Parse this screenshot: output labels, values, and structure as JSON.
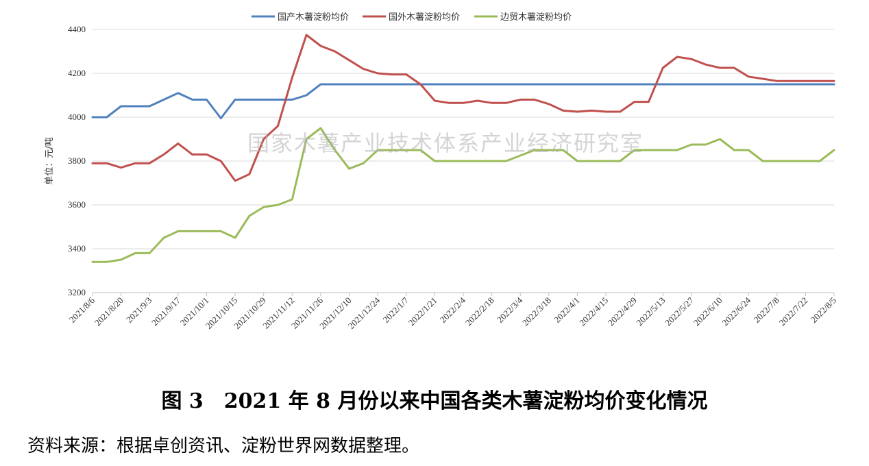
{
  "chart_data": {
    "type": "line",
    "title": "",
    "xlabel": "",
    "ylabel": "单位：元/吨",
    "ylim": [
      3200,
      4400
    ],
    "yticks": [
      3200,
      3400,
      3600,
      3800,
      4000,
      4200,
      4400
    ],
    "grid": true,
    "legend_position": "top-center",
    "watermark": "国家木薯产业技术体系产业经济研究室",
    "x_tick_labels": [
      "2021/8/6",
      "2021/8/20",
      "2021/9/3",
      "2021/9/17",
      "2021/10/1",
      "2021/10/15",
      "2021/10/29",
      "2021/11/12",
      "2021/11/26",
      "2021/12/10",
      "2021/12/24",
      "2022/1/7",
      "2022/1/21",
      "2022/2/4",
      "2022/2/18",
      "2022/3/4",
      "2022/3/18",
      "2022/4/1",
      "2022/4/15",
      "2022/4/29",
      "2022/5/13",
      "2022/5/27",
      "2022/6/10",
      "2022/6/24",
      "2022/7/8",
      "2022/7/22",
      "2022/8/5"
    ],
    "x": [
      "2021/8/6",
      "2021/8/13",
      "2021/8/20",
      "2021/8/27",
      "2021/9/3",
      "2021/9/10",
      "2021/9/17",
      "2021/9/24",
      "2021/10/1",
      "2021/10/8",
      "2021/10/15",
      "2021/10/22",
      "2021/10/29",
      "2021/11/5",
      "2021/11/12",
      "2021/11/19",
      "2021/11/26",
      "2021/12/3",
      "2021/12/10",
      "2021/12/17",
      "2021/12/24",
      "2021/12/31",
      "2022/1/7",
      "2022/1/14",
      "2022/1/21",
      "2022/1/28",
      "2022/2/4",
      "2022/2/11",
      "2022/2/18",
      "2022/2/25",
      "2022/3/4",
      "2022/3/11",
      "2022/3/18",
      "2022/3/25",
      "2022/4/1",
      "2022/4/8",
      "2022/4/15",
      "2022/4/22",
      "2022/4/29",
      "2022/5/6",
      "2022/5/13",
      "2022/5/20",
      "2022/5/27",
      "2022/6/3",
      "2022/6/10",
      "2022/6/17",
      "2022/6/24",
      "2022/7/1",
      "2022/7/8",
      "2022/7/15",
      "2022/7/22",
      "2022/7/29",
      "2022/8/5"
    ],
    "series": [
      {
        "name": "国产木薯淀粉均价",
        "color": "#4f81bd",
        "values": [
          4000,
          4000,
          4050,
          4050,
          4050,
          4080,
          4110,
          4080,
          4080,
          3995,
          4080,
          4080,
          4080,
          4080,
          4080,
          4100,
          4150,
          4150,
          4150,
          4150,
          4150,
          4150,
          4150,
          4150,
          4150,
          4150,
          4150,
          4150,
          4150,
          4150,
          4150,
          4150,
          4150,
          4150,
          4150,
          4150,
          4150,
          4150,
          4150,
          4150,
          4150,
          4150,
          4150,
          4150,
          4150,
          4150,
          4150,
          4150,
          4150,
          4150,
          4150,
          4150,
          4150
        ]
      },
      {
        "name": "国外木薯淀粉均价",
        "color": "#c0504d",
        "values": [
          3790,
          3790,
          3770,
          3790,
          3790,
          3830,
          3880,
          3830,
          3830,
          3800,
          3710,
          3740,
          3900,
          3960,
          4180,
          4375,
          4325,
          4300,
          4260,
          4220,
          4200,
          4195,
          4195,
          4150,
          4075,
          4065,
          4065,
          4075,
          4065,
          4065,
          4080,
          4080,
          4060,
          4030,
          4025,
          4030,
          4025,
          4025,
          4070,
          4070,
          4225,
          4275,
          4265,
          4240,
          4225,
          4225,
          4185,
          4175,
          4165,
          4165,
          4165,
          4165,
          4165
        ]
      },
      {
        "name": "边贸木薯淀粉均价",
        "color": "#9bbb59",
        "values": [
          3340,
          3340,
          3350,
          3380,
          3380,
          3450,
          3480,
          3480,
          3480,
          3480,
          3450,
          3550,
          3590,
          3600,
          3625,
          3900,
          3950,
          3850,
          3765,
          3790,
          3850,
          3850,
          3850,
          3850,
          3800,
          3800,
          3800,
          3800,
          3800,
          3800,
          3825,
          3850,
          3850,
          3850,
          3800,
          3800,
          3800,
          3800,
          3850,
          3850,
          3850,
          3850,
          3875,
          3875,
          3900,
          3850,
          3850,
          3800,
          3800,
          3800,
          3800,
          3800,
          3850
        ]
      }
    ]
  },
  "caption": "图 3　2021 年 8 月份以来中国各类木薯淀粉均价变化情况",
  "source": "资料来源：根据卓创资讯、淀粉世界网数据整理。"
}
